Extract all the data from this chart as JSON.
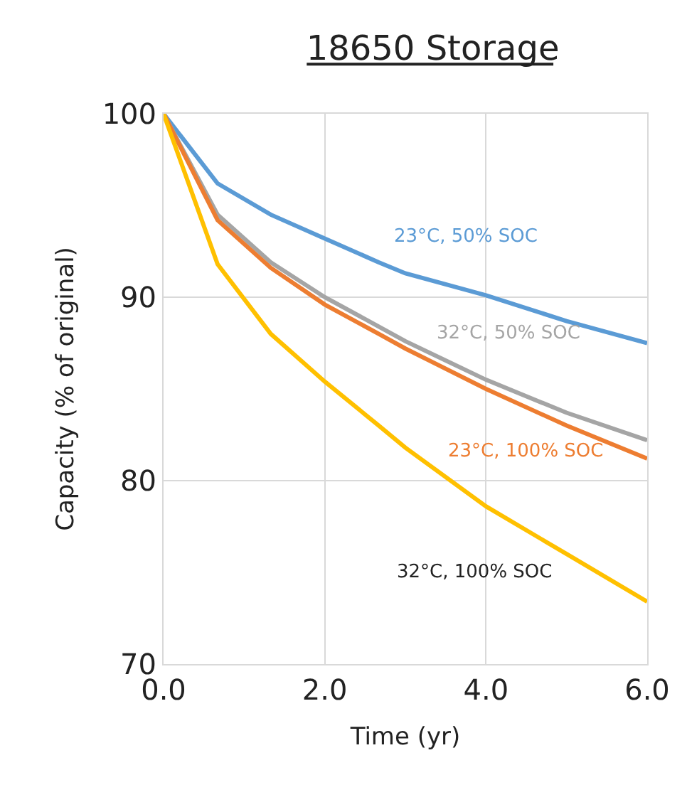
{
  "chart_data": {
    "type": "line",
    "title": "18650 Storage",
    "xlabel": "Time (yr)",
    "ylabel": "Capacity (% of original)",
    "x": [
      0,
      0.67,
      1.33,
      2,
      2.67,
      3,
      4,
      5,
      6
    ],
    "series": [
      {
        "name": "23°C, 50% SOC",
        "color": "#5b9bd5",
        "values": [
          100,
          96.2,
          94.5,
          93.2,
          91.9,
          91.3,
          90.1,
          88.7,
          87.5
        ]
      },
      {
        "name": "32°C, 50% SOC",
        "color": "#a5a5a5",
        "values": [
          100,
          94.5,
          91.9,
          90.0,
          88.4,
          87.6,
          85.5,
          83.7,
          82.2
        ]
      },
      {
        "name": "23°C, 100% SOC",
        "color": "#ed7d31",
        "values": [
          100,
          94.2,
          91.6,
          89.6,
          88.0,
          87.2,
          85.0,
          83.0,
          81.2
        ]
      },
      {
        "name": "32°C, 100% SOC",
        "color": "#ffc000",
        "values": [
          100,
          91.8,
          88.0,
          85.4,
          83.0,
          81.8,
          78.6,
          76.0,
          73.4
        ]
      }
    ],
    "xlim": [
      0,
      6
    ],
    "xticks": [
      {
        "value": 0,
        "label": "0.0"
      },
      {
        "value": 2,
        "label": "2.0"
      },
      {
        "value": 4,
        "label": "4.0"
      },
      {
        "value": 6,
        "label": "6.0"
      }
    ],
    "ylim": [
      70,
      100
    ],
    "yticks": [
      70,
      80,
      90,
      100
    ],
    "grid": true,
    "legend": false,
    "marker": "none",
    "line_style": "solid"
  }
}
